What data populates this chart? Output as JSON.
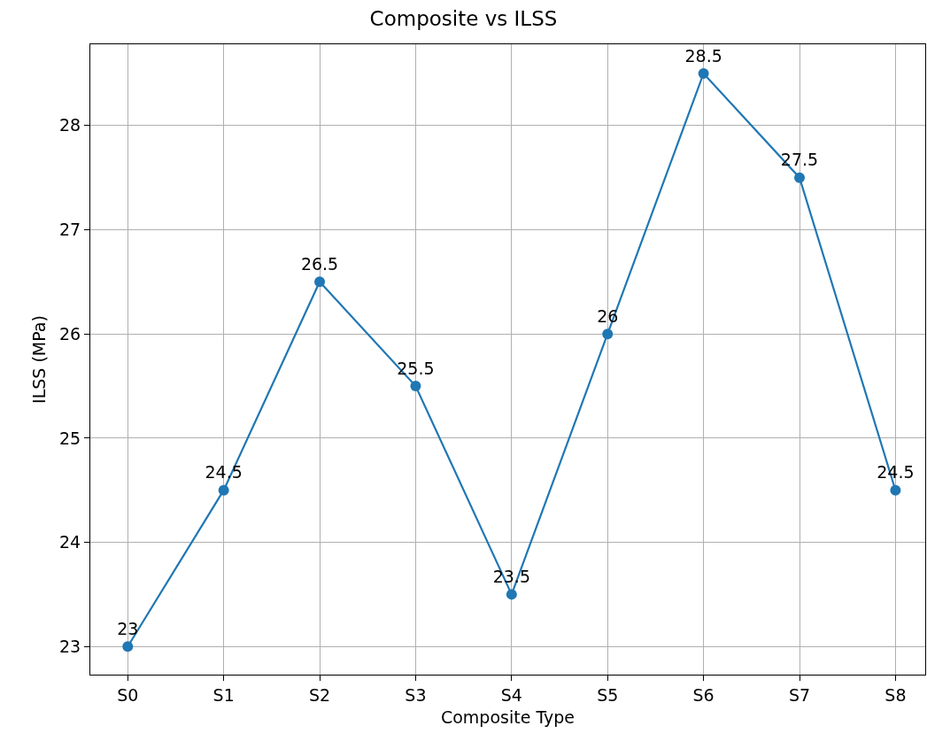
{
  "chart_data": {
    "type": "line",
    "title": "Composite vs ILSS",
    "xlabel": "Composite Type",
    "ylabel": "ILSS (MPa)",
    "categories": [
      "S0",
      "S1",
      "S2",
      "S3",
      "S4",
      "S5",
      "S6",
      "S7",
      "S8"
    ],
    "series": [
      {
        "color": "#1f77b4",
        "values": [
          23,
          24.5,
          26.5,
          25.5,
          23.5,
          26,
          28.5,
          27.5,
          24.5
        ]
      }
    ],
    "ylim": [
      22.73,
      28.78
    ],
    "yticks": [
      23,
      24,
      25,
      26,
      27,
      28
    ],
    "grid": true,
    "marker": "circle",
    "line_style": "solid",
    "data_labels": true
  }
}
